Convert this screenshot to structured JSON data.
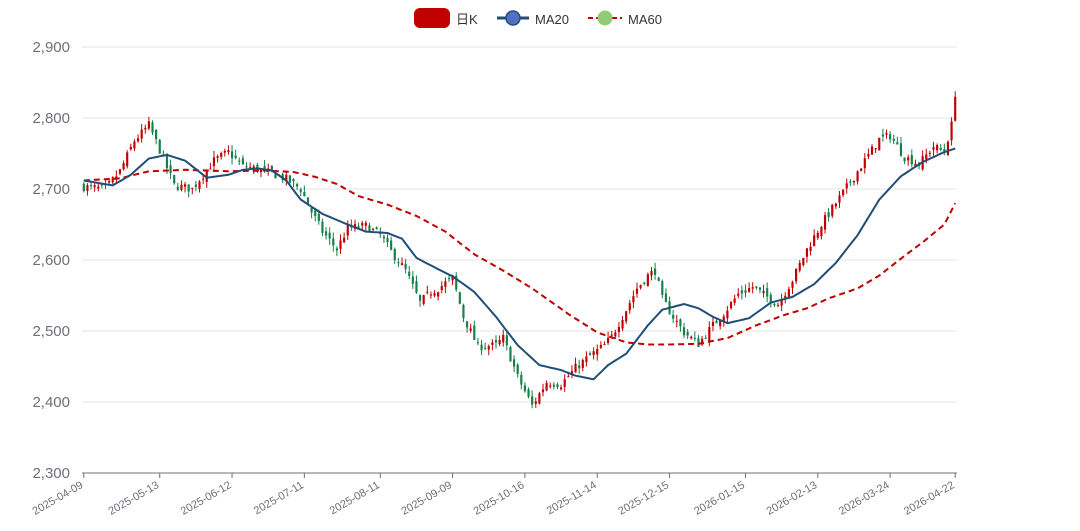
{
  "legend": {
    "kline_label": "日K",
    "ma20_label": "MA20",
    "ma60_label": "MA60"
  },
  "colors": {
    "up": "#c00000",
    "down": "#14804a",
    "ma20": "#1f4e79",
    "ma20_legend_dot": "#5470c6",
    "ma60": "#c00000",
    "ma60_legend_dot": "#91cc75",
    "grid": "#e6e6e6",
    "axis": "#6e7079"
  },
  "chart_data": {
    "type": "candlestick",
    "title": "",
    "xlabel": "",
    "ylabel": "",
    "ylim": [
      2300,
      2900
    ],
    "y_ticks": [
      "2,300",
      "2,400",
      "2,500",
      "2,600",
      "2,700",
      "2,800",
      "2,900"
    ],
    "y_tick_values": [
      2300,
      2400,
      2500,
      2600,
      2700,
      2800,
      2900
    ],
    "x_tick_labels": [
      "2025-04-09",
      "2025-05-13",
      "2025-06-12",
      "2025-07-11",
      "2025-08-11",
      "2025-09-09",
      "2025-10-16",
      "2025-11-14",
      "2025-12-15",
      "2026-01-15",
      "2026-02-13",
      "2026-03-24",
      "2026-04-22"
    ],
    "x_tick_index": [
      0,
      21,
      41,
      61,
      82,
      102,
      122,
      142,
      162,
      183,
      203,
      223,
      241
    ],
    "bar_count": 242,
    "close_anchors": [
      [
        0,
        2703
      ],
      [
        6,
        2700
      ],
      [
        10,
        2725
      ],
      [
        14,
        2768
      ],
      [
        18,
        2790
      ],
      [
        21,
        2755
      ],
      [
        25,
        2705
      ],
      [
        30,
        2700
      ],
      [
        36,
        2740
      ],
      [
        40,
        2752
      ],
      [
        44,
        2732
      ],
      [
        48,
        2728
      ],
      [
        52,
        2722
      ],
      [
        56,
        2714
      ],
      [
        60,
        2700
      ],
      [
        63,
        2668
      ],
      [
        66,
        2640
      ],
      [
        70,
        2615
      ],
      [
        73,
        2645
      ],
      [
        78,
        2648
      ],
      [
        82,
        2635
      ],
      [
        85,
        2612
      ],
      [
        89,
        2585
      ],
      [
        93,
        2540
      ],
      [
        96,
        2555
      ],
      [
        98,
        2560
      ],
      [
        102,
        2575
      ],
      [
        105,
        2520
      ],
      [
        109,
        2478
      ],
      [
        114,
        2480
      ],
      [
        116,
        2490
      ],
      [
        120,
        2435
      ],
      [
        124,
        2395
      ],
      [
        128,
        2428
      ],
      [
        132,
        2425
      ],
      [
        136,
        2448
      ],
      [
        140,
        2465
      ],
      [
        144,
        2480
      ],
      [
        146,
        2492
      ],
      [
        150,
        2530
      ],
      [
        153,
        2560
      ],
      [
        156,
        2578
      ],
      [
        158,
        2585
      ],
      [
        160,
        2545
      ],
      [
        163,
        2520
      ],
      [
        166,
        2498
      ],
      [
        170,
        2482
      ],
      [
        174,
        2508
      ],
      [
        177,
        2525
      ],
      [
        181,
        2552
      ],
      [
        185,
        2562
      ],
      [
        189,
        2548
      ],
      [
        192,
        2538
      ],
      [
        196,
        2572
      ],
      [
        200,
        2615
      ],
      [
        204,
        2650
      ],
      [
        208,
        2680
      ],
      [
        212,
        2710
      ],
      [
        216,
        2740
      ],
      [
        220,
        2770
      ],
      [
        223,
        2775
      ],
      [
        227,
        2745
      ],
      [
        231,
        2735
      ],
      [
        235,
        2760
      ],
      [
        238,
        2752
      ],
      [
        240,
        2790
      ],
      [
        241,
        2835
      ]
    ],
    "ma20_anchors": [
      [
        0,
        2712
      ],
      [
        8,
        2705
      ],
      [
        13,
        2720
      ],
      [
        18,
        2743
      ],
      [
        23,
        2748
      ],
      [
        28,
        2740
      ],
      [
        34,
        2716
      ],
      [
        40,
        2720
      ],
      [
        44,
        2727
      ],
      [
        48,
        2729
      ],
      [
        52,
        2726
      ],
      [
        56,
        2712
      ],
      [
        60,
        2685
      ],
      [
        66,
        2665
      ],
      [
        72,
        2652
      ],
      [
        78,
        2640
      ],
      [
        84,
        2638
      ],
      [
        88,
        2630
      ],
      [
        92,
        2603
      ],
      [
        98,
        2587
      ],
      [
        102,
        2577
      ],
      [
        108,
        2555
      ],
      [
        114,
        2520
      ],
      [
        120,
        2480
      ],
      [
        126,
        2452
      ],
      [
        132,
        2445
      ],
      [
        136,
        2437
      ],
      [
        141,
        2432
      ],
      [
        145,
        2452
      ],
      [
        150,
        2468
      ],
      [
        156,
        2508
      ],
      [
        160,
        2530
      ],
      [
        166,
        2538
      ],
      [
        170,
        2532
      ],
      [
        174,
        2520
      ],
      [
        178,
        2511
      ],
      [
        184,
        2518
      ],
      [
        190,
        2540
      ],
      [
        196,
        2548
      ],
      [
        202,
        2566
      ],
      [
        208,
        2596
      ],
      [
        214,
        2635
      ],
      [
        220,
        2685
      ],
      [
        226,
        2718
      ],
      [
        232,
        2738
      ],
      [
        238,
        2752
      ],
      [
        241,
        2757
      ]
    ],
    "ma60_anchors": [
      [
        0,
        2712
      ],
      [
        10,
        2715
      ],
      [
        18,
        2725
      ],
      [
        28,
        2727
      ],
      [
        40,
        2725
      ],
      [
        50,
        2726
      ],
      [
        58,
        2724
      ],
      [
        64,
        2717
      ],
      [
        70,
        2707
      ],
      [
        76,
        2690
      ],
      [
        84,
        2678
      ],
      [
        92,
        2662
      ],
      [
        100,
        2640
      ],
      [
        108,
        2608
      ],
      [
        116,
        2585
      ],
      [
        124,
        2560
      ],
      [
        134,
        2524
      ],
      [
        142,
        2498
      ],
      [
        150,
        2484
      ],
      [
        156,
        2481
      ],
      [
        162,
        2481
      ],
      [
        170,
        2482
      ],
      [
        178,
        2490
      ],
      [
        186,
        2508
      ],
      [
        194,
        2523
      ],
      [
        200,
        2532
      ],
      [
        206,
        2546
      ],
      [
        214,
        2560
      ],
      [
        220,
        2578
      ],
      [
        226,
        2602
      ],
      [
        232,
        2625
      ],
      [
        238,
        2650
      ],
      [
        241,
        2680
      ]
    ]
  }
}
